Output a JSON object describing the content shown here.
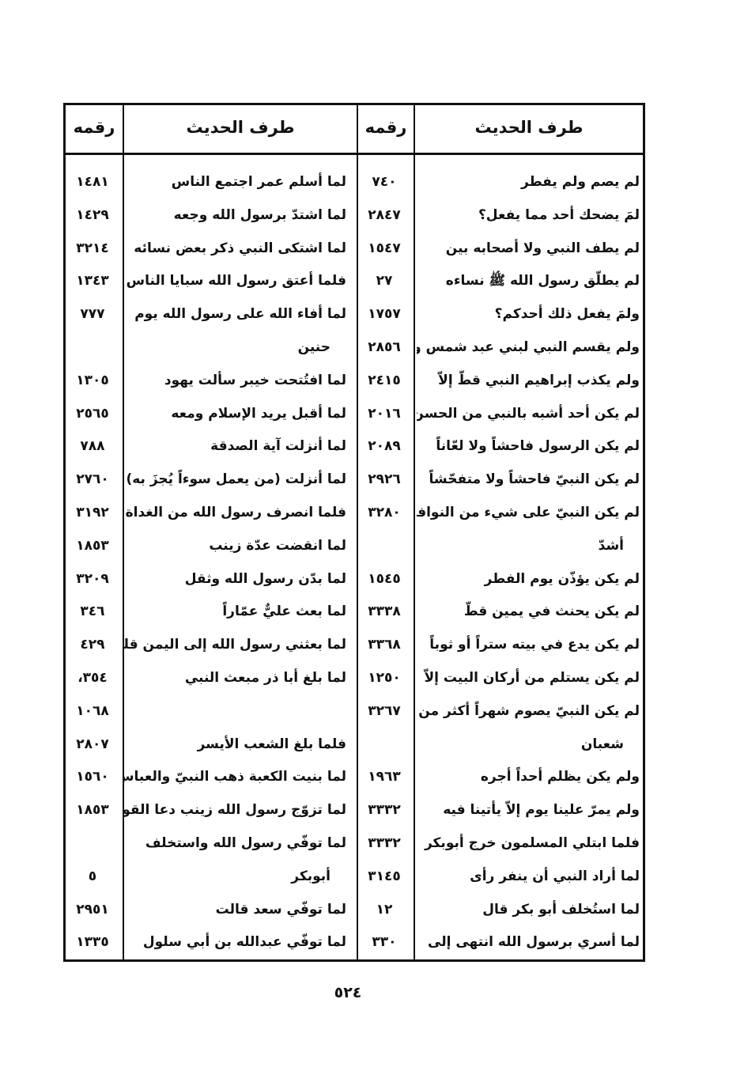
{
  "headers": {
    "text": "طرف الحديث",
    "number": "رقمه"
  },
  "rows": [
    {
      "t1": "لم يصم ولم يفطر",
      "n1": "٧٤٠",
      "t2": "لما أسلم عمر اجتمع الناس",
      "n2": "١٤٨١"
    },
    {
      "t1": "لمَ يضحك أحد مما يفعل؟",
      "n1": "٢٨٤٧",
      "t2": "لما اشتدّ برسول الله وجعه",
      "n2": "١٤٢٩"
    },
    {
      "t1": "لم يطف النبي ولا أصحابه بين",
      "n1": "١٥٤٧",
      "t2": "لما اشتكى النبي ذكر بعض نسائه",
      "n2": "٣٢١٤"
    },
    {
      "t1": "لم يطلّق رسول الله ﷺ نساءه",
      "n1": "٢٧",
      "t2": "فلما أعتق رسول الله سبايا الناس",
      "n2": "١٣٤٣"
    },
    {
      "t1": "ولمَ يفعل ذلك أحدكم؟",
      "n1": "١٧٥٧",
      "t2": "لما أفاء الله على رسول الله يوم",
      "n2": "٧٧٧"
    },
    {
      "t1": "ولم يقسم النبي لبني عبد شمس ولا",
      "n1": "٢٨٥٦",
      "t2": "حنين",
      "t2cont": true,
      "n2": ""
    },
    {
      "t1": "ولم يكذب إبراهيم النبي قطّ إلاّ",
      "n1": "٢٤١٥",
      "t2": "لما افتُتحت خيبر سألت يهود",
      "n2": "١٣٠٥"
    },
    {
      "t1": "لم يكن أحد أشبه بالنبي من الحسن",
      "n1": "٢٠١٦",
      "t2": "لما أقبل يريد الإسلام ومعه",
      "n2": "٢٥٦٥"
    },
    {
      "t1": "لم يكن الرسول فاحشاً ولا لعّاناً",
      "n1": "٢٠٨٩",
      "t2": "لما أنزلت آية الصدقة",
      "n2": "٧٨٨"
    },
    {
      "t1": "لم يكن النبيّ فاحشاً ولا متفحّشاً",
      "n1": "٢٩٢٦",
      "t2": "لما أنزلت (من يعمل سوءاً يُجزَ به)",
      "n2": "٢٧٦٠"
    },
    {
      "t1": "لم يكن النبيّ على شيء من النوافل",
      "n1": "٣٢٨٠",
      "t2": "فلما انصرف رسول الله من الغداة",
      "n2": "٣١٩٢"
    },
    {
      "t1": "أشدّ",
      "t1cont": true,
      "n1": "",
      "t2": "لما انقضت عدّة زينب",
      "n2": "١٨٥٣"
    },
    {
      "t1": "لم يكن يؤذّن يوم الفطر",
      "n1": "١٥٤٥",
      "t2": "لما بدّن رسول الله وثقل",
      "n2": "٣٢٠٩"
    },
    {
      "t1": "لم يكن يحنث في يمين قطّ",
      "n1": "٣٣٣٨",
      "t2": "لما بعث عليٌّ عمّاراً",
      "n2": "٣٤٦"
    },
    {
      "t1": "لم يكن يدع في بيته ستراً أو ثوباً",
      "n1": "٣٣٦٨",
      "t2": "لما بعثني رسول الله إلى اليمن قلت",
      "n2": "٤٢٩"
    },
    {
      "t1": "لم يكن يستلم من أركان البيت إلاّ",
      "n1": "١٢٥٠",
      "t2": "لما بلغ أبا ذر مبعث النبي",
      "n2": "٣٥٤،"
    },
    {
      "t1": "لم يكن النبيّ يصوم شهراً أكثر من",
      "n1": "٣٢٦٧",
      "t2": "",
      "n2": "١٠٦٨"
    },
    {
      "t1": "شعبان",
      "t1cont": true,
      "n1": "",
      "t2": "فلما بلغ الشعب الأيسر",
      "n2": "٢٨٠٧"
    },
    {
      "t1": "ولم يكن يظلم أحداً أجره",
      "n1": "١٩٦٣",
      "t2": "لما بنيت الكعبة ذهب النبيّ والعباس",
      "n2": "١٥٦٠"
    },
    {
      "t1": "ولم يمرّ علينا يوم إلاّ يأتينا فيه",
      "n1": "٣٣٣٢",
      "t2": "لما تزوّج رسول الله زينب دعا القوم",
      "n2": "١٨٥٣"
    },
    {
      "t1": "فلما ابتلي المسلمون خرج أبوبكر",
      "n1": "٣٣٣٢",
      "t2": "لما توفّي رسول الله واستخلف",
      "n2": ""
    },
    {
      "t1": "لما أراد النبي أن ينفر رأى",
      "n1": "٣١٤٥",
      "t2": "أبوبكر",
      "t2cont": true,
      "n2": "٥"
    },
    {
      "t1": "لما استُخلف أبو بكر قال",
      "n1": "١٢",
      "t2": "لما توفّي سعد قالت",
      "n2": "٢٩٥١"
    },
    {
      "t1": "لما أسري برسول الله انتهى إلى",
      "n1": "٣٣٠",
      "t2": "لما توفّي عبدالله بن أبي سلول",
      "n2": "١٣٣٥"
    }
  ],
  "page_number": "٥٢٤"
}
